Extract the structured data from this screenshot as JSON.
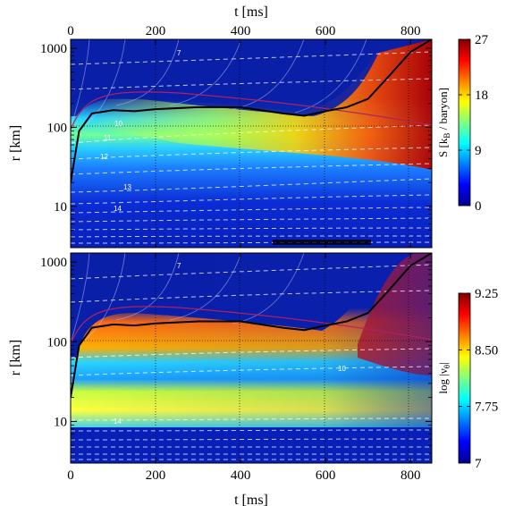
{
  "chart_data": [
    {
      "type": "heatmap",
      "panel": "top",
      "quantity": "entropy",
      "xlabel_top": "t [ms]",
      "ylabel": "r [km]",
      "colorbar_label": "S [k_B / baryon]",
      "colorbar_ticks": [
        "0",
        "9",
        "18",
        "27"
      ],
      "colorbar_range": [
        0,
        27
      ],
      "xlim": [
        0,
        850
      ],
      "ylim": [
        3,
        1300
      ],
      "yscale": "log",
      "x_ticks": [
        "0",
        "200",
        "400",
        "600",
        "800"
      ],
      "y_ticks": [
        "10",
        "100",
        "1000"
      ],
      "contour_labels": [
        "7",
        "10",
        "11",
        "12",
        "13",
        "14"
      ],
      "shock_radius_km": {
        "t": [
          0,
          20,
          50,
          100,
          150,
          200,
          300,
          400,
          500,
          550,
          600,
          650,
          700,
          750,
          800,
          850
        ],
        "r": [
          20,
          90,
          150,
          165,
          160,
          170,
          180,
          180,
          150,
          140,
          160,
          180,
          230,
          450,
          900,
          1300
        ]
      }
    },
    {
      "type": "heatmap",
      "panel": "bottom",
      "quantity": "log vorticity",
      "xlabel": "t [ms]",
      "ylabel": "r [km]",
      "colorbar_label": "log |ν_θ|",
      "colorbar_ticks": [
        "7",
        "7.75",
        "8.50",
        "9.25"
      ],
      "colorbar_range": [
        7,
        9.25
      ],
      "xlim": [
        0,
        850
      ],
      "ylim": [
        3,
        1300
      ],
      "yscale": "log",
      "x_ticks": [
        "0",
        "200",
        "400",
        "600",
        "800"
      ],
      "y_ticks": [
        "10",
        "100",
        "1000"
      ],
      "contour_labels": [
        "7",
        "10",
        "14"
      ],
      "shock_radius_km": {
        "t": [
          0,
          20,
          50,
          100,
          150,
          200,
          300,
          400,
          500,
          550,
          600,
          650,
          700,
          750,
          800,
          850
        ],
        "r": [
          20,
          90,
          150,
          165,
          160,
          170,
          180,
          180,
          150,
          140,
          160,
          180,
          230,
          450,
          900,
          1300
        ]
      }
    }
  ],
  "colors": {
    "jet_dark_blue": "#00008f",
    "jet_blue": "#0050ff",
    "jet_cyan": "#00ffff",
    "jet_yellow": "#ffff00",
    "jet_red": "#ff0000",
    "jet_dark_red": "#800000",
    "shock_line": "#000000",
    "contour": "#ffffff",
    "pns_line": "#b02060"
  },
  "labels": {
    "top_xaxis": "t [ms]",
    "bottom_xaxis": "t [ms]",
    "top_ylabel": "r [km]",
    "bottom_ylabel": "r [km]",
    "cbar_top_label": "S [k",
    "cbar_top_sub": "B",
    "cbar_top_rest": " / baryon]",
    "cbar_bottom_label": "log |ν",
    "cbar_bottom_sub": "θ",
    "cbar_bottom_rest": "|"
  }
}
